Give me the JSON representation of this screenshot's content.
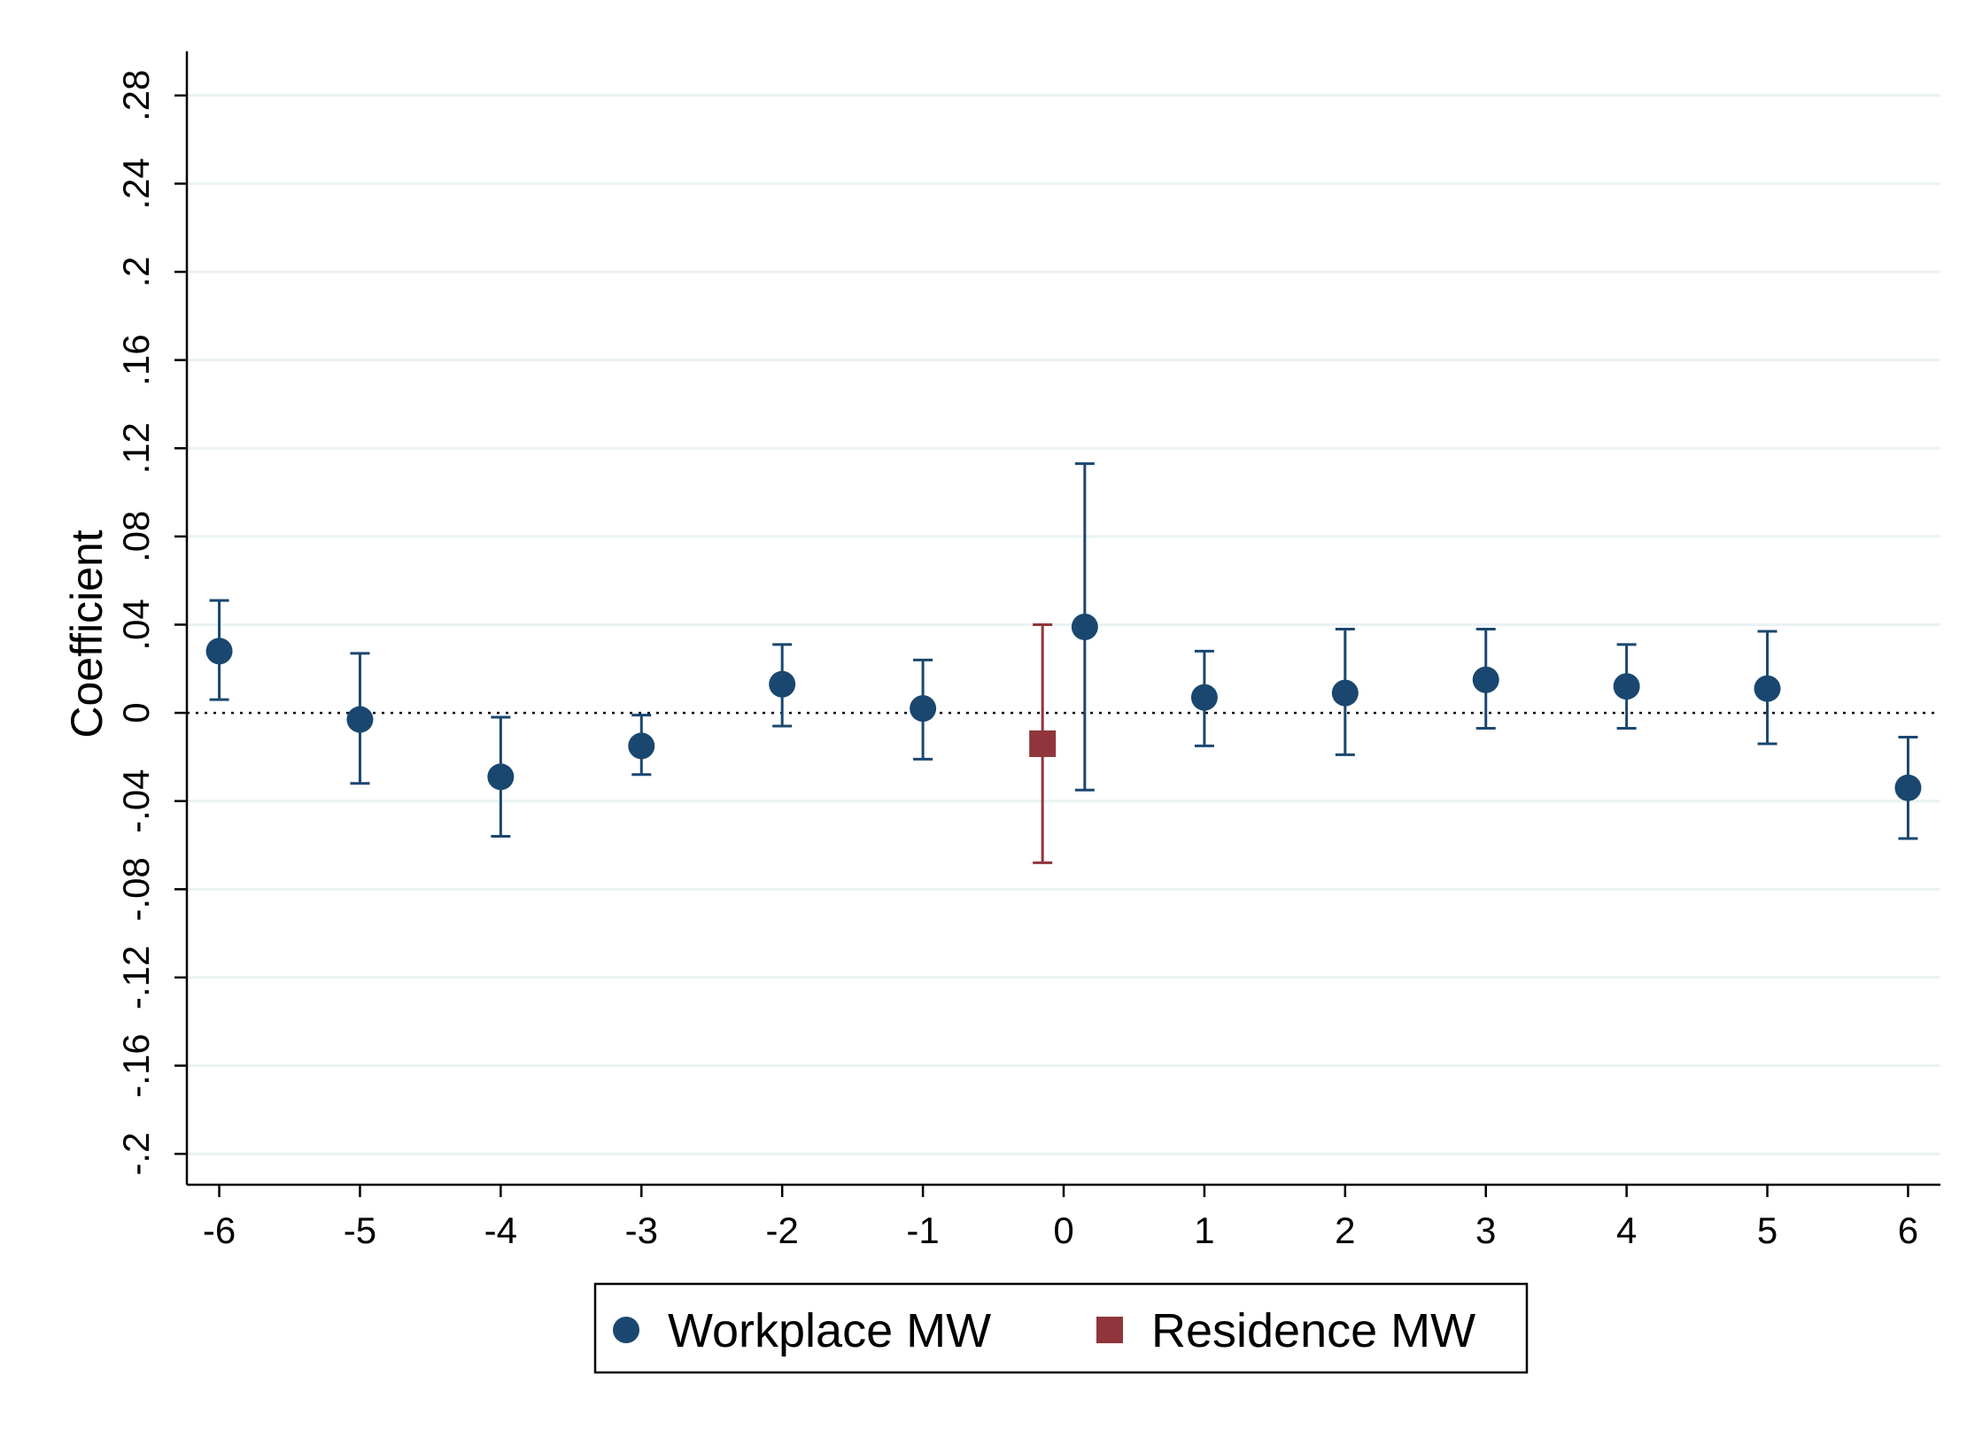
{
  "chart_data": {
    "type": "scatter",
    "ylabel": "Coefficient",
    "xlabel": "",
    "ylim": [
      -0.214,
      0.3
    ],
    "xlim": [
      -6.23,
      6.23
    ],
    "x_ticks": [
      {
        "value": -6,
        "label": "-6"
      },
      {
        "value": -5,
        "label": "-5"
      },
      {
        "value": -4,
        "label": "-4"
      },
      {
        "value": -3,
        "label": "-3"
      },
      {
        "value": -2,
        "label": "-2"
      },
      {
        "value": -1,
        "label": "-1"
      },
      {
        "value": 0,
        "label": "0"
      },
      {
        "value": 1,
        "label": "1"
      },
      {
        "value": 2,
        "label": "2"
      },
      {
        "value": 3,
        "label": "3"
      },
      {
        "value": 4,
        "label": "4"
      },
      {
        "value": 5,
        "label": "5"
      },
      {
        "value": 6,
        "label": "6"
      }
    ],
    "y_ticks": [
      {
        "value": -0.2,
        "label": "-.2"
      },
      {
        "value": -0.16,
        "label": "-.16"
      },
      {
        "value": -0.12,
        "label": "-.12"
      },
      {
        "value": -0.08,
        "label": "-.08"
      },
      {
        "value": -0.04,
        "label": "-.04"
      },
      {
        "value": 0,
        "label": "0"
      },
      {
        "value": 0.04,
        "label": ".04"
      },
      {
        "value": 0.08,
        "label": ".08"
      },
      {
        "value": 0.12,
        "label": ".12"
      },
      {
        "value": 0.16,
        "label": ".16"
      },
      {
        "value": 0.2,
        "label": ".2"
      },
      {
        "value": 0.24,
        "label": ".24"
      },
      {
        "value": 0.28,
        "label": ".28"
      }
    ],
    "grid": true,
    "zero_line": "dotted",
    "legend_position": "bottom",
    "series": [
      {
        "name": "Workplace MW",
        "color": "#1a476f",
        "marker": "circle",
        "points": [
          {
            "x": -6,
            "y": 0.028,
            "lo": 0.006,
            "hi": 0.051
          },
          {
            "x": -5,
            "y": -0.003,
            "lo": -0.032,
            "hi": 0.027
          },
          {
            "x": -4,
            "y": -0.029,
            "lo": -0.056,
            "hi": -0.002
          },
          {
            "x": -3,
            "y": -0.015,
            "lo": -0.028,
            "hi": -0.001
          },
          {
            "x": -2,
            "y": 0.013,
            "lo": -0.006,
            "hi": 0.031
          },
          {
            "x": -1,
            "y": 0.002,
            "lo": -0.021,
            "hi": 0.024
          },
          {
            "x": 0.15,
            "y": 0.039,
            "lo": -0.035,
            "hi": 0.113
          },
          {
            "x": 1,
            "y": 0.007,
            "lo": -0.015,
            "hi": 0.028
          },
          {
            "x": 2,
            "y": 0.009,
            "lo": -0.019,
            "hi": 0.038
          },
          {
            "x": 3,
            "y": 0.015,
            "lo": -0.007,
            "hi": 0.038
          },
          {
            "x": 4,
            "y": 0.012,
            "lo": -0.007,
            "hi": 0.031
          },
          {
            "x": 5,
            "y": 0.011,
            "lo": -0.014,
            "hi": 0.037
          },
          {
            "x": 6,
            "y": -0.034,
            "lo": -0.057,
            "hi": -0.011
          }
        ]
      },
      {
        "name": "Residence MW",
        "color": "#90353b",
        "marker": "square",
        "points": [
          {
            "x": -0.15,
            "y": -0.014,
            "lo": -0.068,
            "hi": 0.04
          }
        ]
      }
    ]
  }
}
